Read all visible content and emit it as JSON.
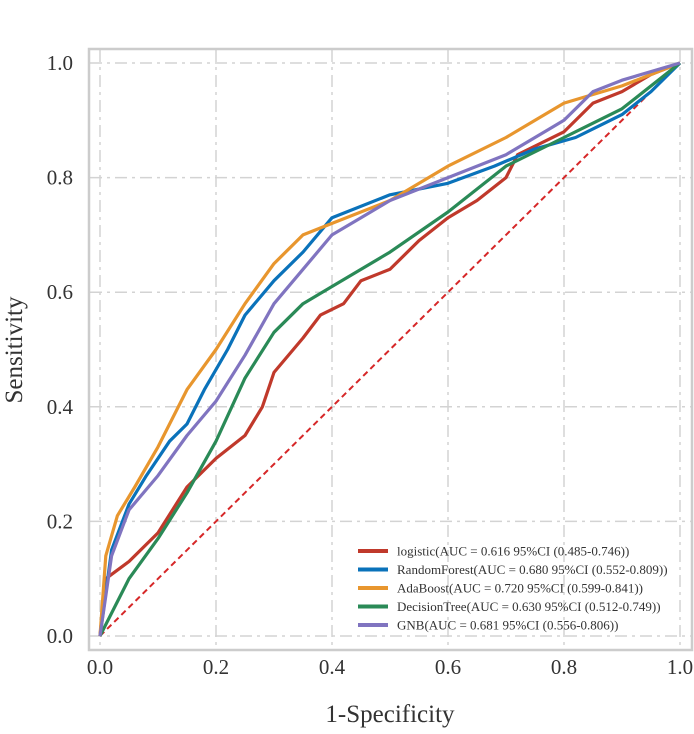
{
  "chart_data": {
    "type": "line",
    "xlabel": "1-Specificity",
    "ylabel": "Sensitivity",
    "xlim": [
      0,
      1
    ],
    "ylim": [
      0,
      1
    ],
    "xticks": [
      "0.0",
      "0.2",
      "0.4",
      "0.6",
      "0.8",
      "1.0"
    ],
    "yticks": [
      "0.0",
      "0.2",
      "0.4",
      "0.6",
      "0.8",
      "1.0"
    ],
    "grid": true,
    "legend_position": "bottom-right",
    "diagonal": {
      "color": "#d62728",
      "style": "dashed",
      "x": [
        0,
        1
      ],
      "y": [
        0,
        1
      ]
    },
    "series": [
      {
        "name": "logistic(AUC = 0.616 95%CI (0.485-0.746))",
        "color": "#c0392b",
        "x": [
          0,
          0.01,
          0.05,
          0.1,
          0.15,
          0.2,
          0.25,
          0.28,
          0.3,
          0.35,
          0.38,
          0.42,
          0.45,
          0.5,
          0.55,
          0.6,
          0.65,
          0.7,
          0.72,
          0.8,
          0.85,
          0.9,
          0.95,
          1
        ],
        "y": [
          0,
          0.1,
          0.13,
          0.18,
          0.26,
          0.31,
          0.35,
          0.4,
          0.46,
          0.52,
          0.56,
          0.58,
          0.62,
          0.64,
          0.69,
          0.73,
          0.76,
          0.8,
          0.84,
          0.88,
          0.93,
          0.95,
          0.98,
          1
        ]
      },
      {
        "name": "RandomForest(AUC = 0.680 95%CI (0.552-0.809))",
        "color": "#0a72ba",
        "x": [
          0,
          0.02,
          0.05,
          0.08,
          0.12,
          0.15,
          0.18,
          0.22,
          0.25,
          0.3,
          0.35,
          0.4,
          0.5,
          0.6,
          0.68,
          0.75,
          0.82,
          0.9,
          0.95,
          1
        ],
        "y": [
          0,
          0.15,
          0.23,
          0.28,
          0.34,
          0.37,
          0.43,
          0.5,
          0.56,
          0.62,
          0.67,
          0.73,
          0.77,
          0.79,
          0.82,
          0.85,
          0.87,
          0.91,
          0.95,
          1
        ]
      },
      {
        "name": "AdaBoost(AUC = 0.720 95%CI (0.599-0.841))",
        "color": "#e8962e",
        "x": [
          0,
          0.01,
          0.03,
          0.06,
          0.1,
          0.15,
          0.2,
          0.25,
          0.3,
          0.35,
          0.4,
          0.5,
          0.6,
          0.7,
          0.8,
          0.9,
          0.95,
          1
        ],
        "y": [
          0,
          0.14,
          0.21,
          0.26,
          0.33,
          0.43,
          0.5,
          0.58,
          0.65,
          0.7,
          0.72,
          0.76,
          0.82,
          0.87,
          0.93,
          0.96,
          0.98,
          1
        ]
      },
      {
        "name": "DecisionTree(AUC = 0.630 95%CI (0.512-0.749))",
        "color": "#2a8a57",
        "x": [
          0,
          0.05,
          0.1,
          0.15,
          0.2,
          0.25,
          0.3,
          0.35,
          0.4,
          0.5,
          0.6,
          0.7,
          0.8,
          0.9,
          1
        ],
        "y": [
          0,
          0.1,
          0.17,
          0.25,
          0.34,
          0.45,
          0.53,
          0.58,
          0.61,
          0.67,
          0.74,
          0.82,
          0.87,
          0.92,
          1
        ]
      },
      {
        "name": "GNB(AUC = 0.681 95%CI (0.556-0.806))",
        "color": "#8074c0",
        "x": [
          0,
          0.02,
          0.05,
          0.1,
          0.15,
          0.2,
          0.25,
          0.3,
          0.35,
          0.4,
          0.45,
          0.5,
          0.6,
          0.7,
          0.8,
          0.85,
          0.9,
          1
        ],
        "y": [
          0,
          0.14,
          0.22,
          0.28,
          0.35,
          0.41,
          0.49,
          0.58,
          0.64,
          0.7,
          0.73,
          0.76,
          0.8,
          0.84,
          0.9,
          0.95,
          0.97,
          1
        ]
      }
    ]
  }
}
